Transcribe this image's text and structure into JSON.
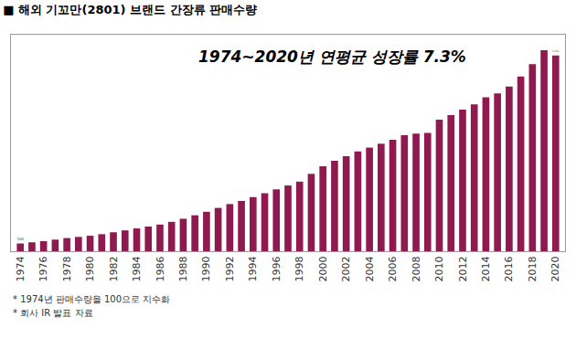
{
  "chart_data": {
    "type": "bar",
    "title": "■ 해외 기꼬만(2801) 브랜드 간장류 판매수량",
    "annotation": "1974~2020년 연평균 성장률 7.3%",
    "footnotes": [
      "* 1974년 판매수량을 100으로 지수화",
      "* 회사 IR 발표 자료"
    ],
    "categories": [
      "1974",
      null,
      "1976",
      null,
      "1978",
      null,
      "1980",
      null,
      "1982",
      null,
      "1984",
      null,
      "1986",
      null,
      "1988",
      null,
      "1990",
      null,
      "1992",
      null,
      "1994",
      null,
      "1996",
      null,
      "1998",
      null,
      "2000",
      null,
      "2002",
      null,
      "2004",
      null,
      "2006",
      null,
      "2008",
      null,
      "2010",
      null,
      "2012",
      null,
      "2014",
      null,
      "2016",
      null,
      "2018",
      null,
      "2020"
    ],
    "values": [
      100,
      115,
      130,
      150,
      170,
      185,
      200,
      220,
      245,
      270,
      295,
      320,
      345,
      380,
      420,
      465,
      510,
      560,
      610,
      650,
      700,
      750,
      800,
      850,
      900,
      1000,
      1100,
      1170,
      1230,
      1290,
      1340,
      1390,
      1440,
      1500,
      1520,
      1530,
      1700,
      1760,
      1830,
      1900,
      1990,
      2040,
      2130,
      2260,
      2420,
      2600,
      2532
    ],
    "value_labels": [
      "100",
      null,
      null,
      null,
      null,
      null,
      null,
      null,
      null,
      null,
      null,
      null,
      null,
      null,
      null,
      null,
      null,
      null,
      null,
      null,
      null,
      null,
      null,
      null,
      null,
      null,
      null,
      null,
      null,
      null,
      null,
      null,
      null,
      null,
      null,
      null,
      null,
      null,
      null,
      null,
      null,
      null,
      null,
      null,
      null,
      null,
      "2,532"
    ],
    "data_labels": true,
    "color": "#8e1a4f",
    "ylim": [
      0,
      2800
    ],
    "yticks": [],
    "grid": false,
    "tick_labels": "x"
  }
}
